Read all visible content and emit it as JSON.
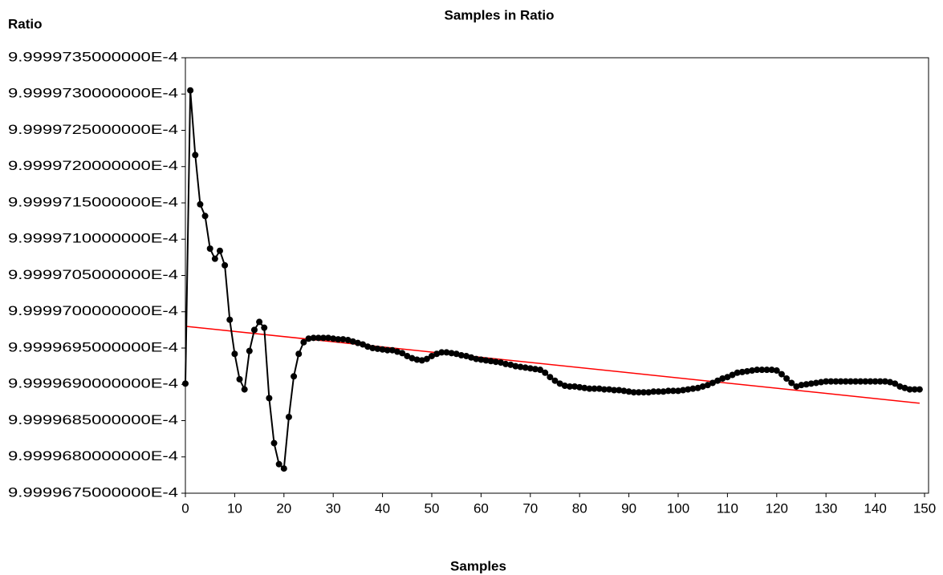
{
  "chart_data": {
    "type": "line",
    "title": "Samples in Ratio",
    "y_label": "Ratio",
    "x_label": "Samples",
    "color": "#000000",
    "x": [
      0,
      1,
      2,
      3,
      4,
      5,
      6,
      7,
      8,
      9,
      10,
      11,
      12,
      13,
      14,
      15,
      16,
      17,
      18,
      19,
      20,
      21,
      22,
      23,
      24,
      25,
      26,
      27,
      28,
      29,
      30,
      31,
      32,
      33,
      34,
      35,
      36,
      37,
      38,
      39,
      40,
      41,
      42,
      43,
      44,
      45,
      46,
      47,
      48,
      49,
      50,
      51,
      52,
      53,
      54,
      55,
      56,
      57,
      58,
      59,
      60,
      61,
      62,
      63,
      64,
      65,
      66,
      67,
      68,
      69,
      70,
      71,
      72,
      73,
      74,
      75,
      76,
      77,
      78,
      79,
      80,
      81,
      82,
      83,
      84,
      85,
      86,
      87,
      88,
      89,
      90,
      91,
      92,
      93,
      94,
      95,
      96,
      97,
      98,
      99,
      100,
      101,
      102,
      103,
      104,
      105,
      106,
      107,
      108,
      109,
      110,
      111,
      112,
      113,
      114,
      115,
      116,
      117,
      118,
      119,
      120,
      121,
      122,
      123,
      124,
      125,
      126,
      127,
      128,
      129,
      130,
      131,
      132,
      133,
      134,
      135,
      136,
      137,
      138,
      139,
      140,
      141,
      142,
      143,
      144,
      145,
      146,
      147,
      148,
      149
    ],
    "values": [
      0.000999996901,
      0.000999997305,
      0.000999997216,
      0.000999997148,
      0.000999997132,
      0.000999997087,
      0.000999997073,
      0.000999997084,
      0.000999997064,
      0.000999996989,
      0.000999996942,
      0.000999996907,
      0.000999996893,
      0.000999996946,
      0.000999996975,
      0.000999996986,
      0.000999996978,
      0.000999996881,
      0.000999996819,
      0.00099999679,
      0.000999996784,
      0.000999996855,
      0.000999996911,
      0.000999996942,
      0.000999996958,
      0.000999996963,
      0.000999996964,
      0.000999996964,
      0.000999996964,
      0.000999996964,
      0.000999996963,
      0.000999996962,
      0.000999996962,
      0.000999996961,
      0.000999996959,
      0.000999996957,
      0.000999996955,
      0.000999996952,
      0.00099999695,
      0.000999996949,
      0.000999996948,
      0.000999996947,
      0.000999996947,
      0.000999996945,
      0.000999996943,
      0.000999996939,
      0.000999996936,
      0.000999996934,
      0.000999996933,
      0.000999996935,
      0.000999996939,
      0.000999996942,
      0.000999996944,
      0.000999996944,
      0.000999996943,
      0.000999996942,
      0.00099999694,
      0.000999996939,
      0.000999996937,
      0.000999996935,
      0.000999996934,
      0.000999996933,
      0.000999996932,
      0.000999996931,
      0.00099999693,
      0.000999996928,
      0.000999996927,
      0.000999996925,
      0.000999996924,
      0.000999996923,
      0.000999996922,
      0.000999996921,
      0.00099999692,
      0.000999996916,
      0.00099999691,
      0.000999996905,
      0.000999996901,
      0.000999996898,
      0.000999996897,
      0.000999996897,
      0.000999996896,
      0.000999996895,
      0.000999996894,
      0.000999996894,
      0.000999996894,
      0.000999996893,
      0.000999996893,
      0.000999996892,
      0.000999996892,
      0.000999996891,
      0.00099999689,
      0.000999996889,
      0.000999996889,
      0.000999996889,
      0.000999996889,
      0.00099999689,
      0.00099999689,
      0.00099999689,
      0.000999996891,
      0.000999996891,
      0.000999996891,
      0.000999996892,
      0.000999996893,
      0.000999996894,
      0.000999996895,
      0.000999996897,
      0.000999996899,
      0.000999996902,
      0.000999996905,
      0.000999996908,
      0.00099999691,
      0.000999996913,
      0.000999996916,
      0.000999996917,
      0.000999996918,
      0.000999996919,
      0.00099999692,
      0.00099999692,
      0.00099999692,
      0.00099999692,
      0.000999996919,
      0.000999996914,
      0.000999996908,
      0.000999996902,
      0.000999996897,
      0.000999996899,
      0.0009999969,
      0.000999996901,
      0.000999996902,
      0.000999996903,
      0.000999996904,
      0.000999996904,
      0.000999996904,
      0.000999996904,
      0.000999996904,
      0.000999996904,
      0.000999996904,
      0.000999996904,
      0.000999996904,
      0.000999996904,
      0.000999996904,
      0.000999996904,
      0.000999996904,
      0.000999996903,
      0.000999996901,
      0.000999996897,
      0.000999996895,
      0.000999996893,
      0.000999996893,
      0.000999996893
    ],
    "trend": {
      "color": "#ff0000",
      "x": [
        0,
        149
      ],
      "values": [
        0.00099999698,
        0.000999996874
      ]
    },
    "xlim": [
      0,
      150
    ],
    "xticks": [
      0,
      10,
      20,
      30,
      40,
      50,
      60,
      70,
      80,
      90,
      100,
      110,
      120,
      130,
      140,
      150
    ],
    "ylim": [
      0.00099999675,
      0.00099999735
    ],
    "yticks": [
      {
        "value": 0.00099999675,
        "label": "9.9999675000000E-4"
      },
      {
        "value": 0.0009999968,
        "label": "9.9999680000000E-4"
      },
      {
        "value": 0.00099999685,
        "label": "9.9999685000000E-4"
      },
      {
        "value": 0.0009999969,
        "label": "9.9999690000000E-4"
      },
      {
        "value": 0.00099999695,
        "label": "9.9999695000000E-4"
      },
      {
        "value": 0.000999997,
        "label": "9.9999700000000E-4"
      },
      {
        "value": 0.00099999705,
        "label": "9.9999705000000E-4"
      },
      {
        "value": 0.0009999971,
        "label": "9.9999710000000E-4"
      },
      {
        "value": 0.00099999715,
        "label": "9.9999715000000E-4"
      },
      {
        "value": 0.0009999972,
        "label": "9.9999720000000E-4"
      },
      {
        "value": 0.00099999725,
        "label": "9.9999725000000E-4"
      },
      {
        "value": 0.0009999973,
        "label": "9.9999730000000E-4"
      },
      {
        "value": 0.00099999735,
        "label": "9.9999735000000E-4"
      }
    ]
  }
}
